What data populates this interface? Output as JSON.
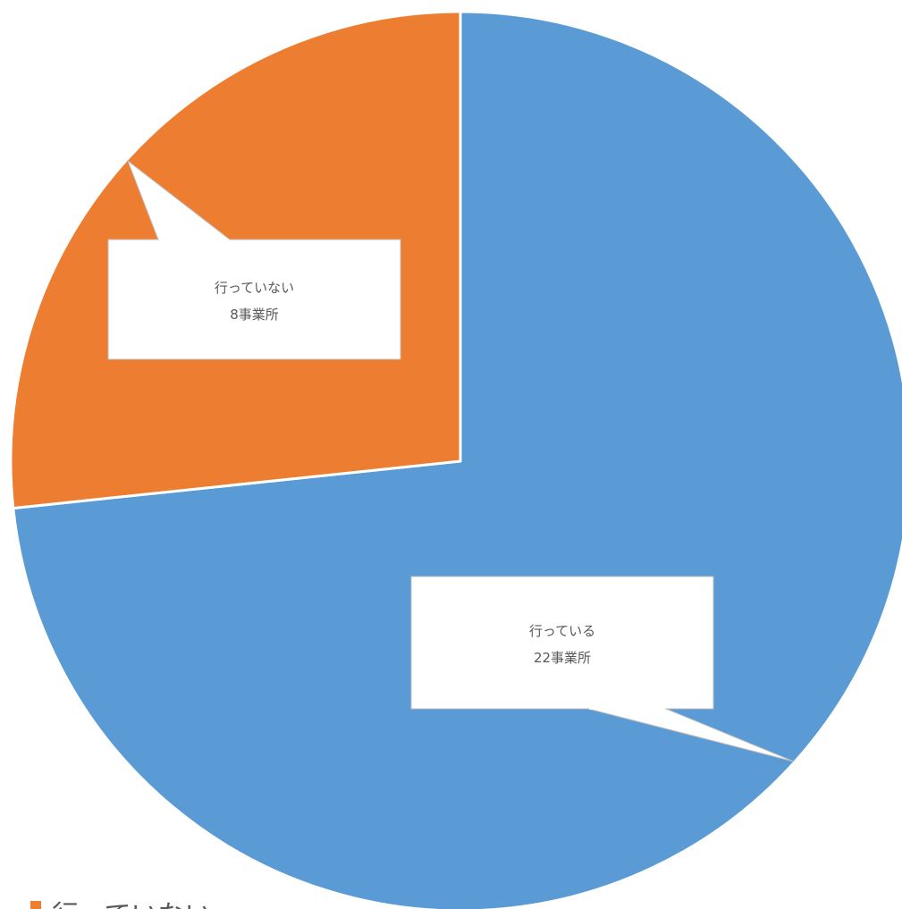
{
  "chart_data": {
    "type": "pie",
    "title": "",
    "slices": [
      {
        "label": "行っている",
        "value": 22,
        "unit": "事業所",
        "color": "#5B9BD5"
      },
      {
        "label": "行っていない",
        "value": 8,
        "unit": "事業所",
        "color": "#ED7D31"
      }
    ],
    "start_angle_deg": 0,
    "direction": "clockwise",
    "legend": {
      "position": "bottom-left",
      "entries": [
        "行っていない"
      ]
    }
  }
}
